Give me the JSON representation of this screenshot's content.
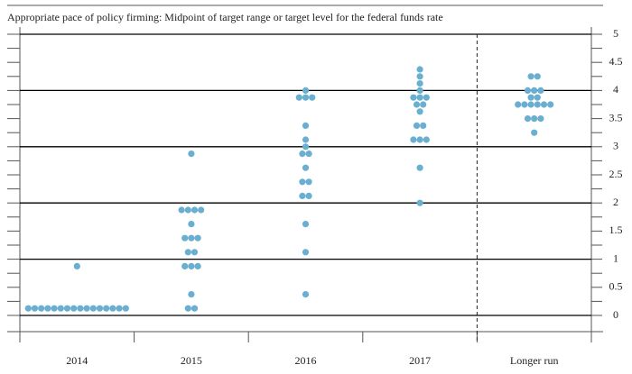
{
  "chart_data": {
    "type": "dot",
    "title": "Appropriate pace of policy firming: Midpoint of target range or target level for the federal funds rate",
    "categories": [
      "2014",
      "2015",
      "2016",
      "2017",
      "Longer run"
    ],
    "values": [
      [
        0.125,
        0.125,
        0.125,
        0.125,
        0.125,
        0.125,
        0.125,
        0.125,
        0.125,
        0.125,
        0.125,
        0.125,
        0.125,
        0.125,
        0.125,
        0.125,
        0.875
      ],
      [
        0.125,
        0.125,
        0.375,
        0.875,
        0.875,
        0.875,
        1.125,
        1.125,
        1.375,
        1.375,
        1.375,
        1.625,
        1.875,
        1.875,
        1.875,
        1.875,
        2.875
      ],
      [
        0.375,
        1.125,
        1.625,
        2.125,
        2.125,
        2.375,
        2.375,
        2.625,
        2.875,
        2.875,
        3.0,
        3.125,
        3.375,
        3.875,
        3.875,
        3.875,
        4.0
      ],
      [
        2.0,
        2.625,
        3.125,
        3.125,
        3.125,
        3.375,
        3.375,
        3.625,
        3.75,
        3.75,
        3.875,
        3.875,
        3.875,
        4.0,
        4.125,
        4.25,
        4.375
      ],
      [
        3.25,
        3.5,
        3.5,
        3.5,
        3.75,
        3.75,
        3.75,
        3.75,
        3.75,
        3.75,
        3.875,
        3.875,
        4.0,
        4.0,
        4.0,
        4.25,
        4.25
      ]
    ],
    "color": "#6aaed0",
    "ylim": [
      0,
      5
    ],
    "yticks": [
      0,
      0.5,
      1,
      1.5,
      2,
      2.5,
      3,
      3.5,
      4,
      4.5,
      5
    ],
    "yminor_ticks": [
      0.25,
      0.75,
      1.25,
      1.75,
      2.25,
      2.75,
      3.25,
      3.75,
      4.25,
      4.75
    ],
    "grid_lines": [
      0,
      1,
      2,
      3,
      4,
      5
    ]
  }
}
